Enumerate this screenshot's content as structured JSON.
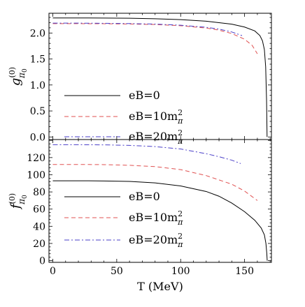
{
  "chart_data": [
    {
      "type": "line",
      "ylabel_sym": "g",
      "ylabel_sup": "(0)",
      "ylabel_sub": "π",
      "ylabel_subsub": "0",
      "xlim": [
        -3,
        171
      ],
      "ylim": [
        -0.05,
        2.38
      ],
      "yticks": [
        0.0,
        0.5,
        1.0,
        1.5,
        2.0
      ],
      "ytick_labels": [
        "0.0",
        "0.5",
        "1.0",
        "1.5",
        "2.0"
      ],
      "legend_position": "bottom-left",
      "series": [
        {
          "name": "eB=0",
          "color": "#000000",
          "dash": "none",
          "x": [
            0,
            20,
            40,
            60,
            80,
            100,
            120,
            140,
            150,
            158,
            162,
            164,
            165.5,
            166.5,
            167.2,
            167.6
          ],
          "y": [
            2.29,
            2.29,
            2.288,
            2.284,
            2.275,
            2.258,
            2.228,
            2.17,
            2.115,
            2.04,
            1.95,
            1.85,
            1.68,
            1.35,
            0.7,
            0.0
          ]
        },
        {
          "name": "eB=10m",
          "name_sup": "2",
          "name_sub": "π",
          "color": "#e05050",
          "dash": "6,4",
          "x": [
            0,
            20,
            40,
            60,
            80,
            100,
            120,
            130,
            140,
            150,
            156,
            160
          ],
          "y": [
            2.18,
            2.18,
            2.178,
            2.173,
            2.163,
            2.14,
            2.095,
            2.055,
            1.99,
            1.88,
            1.76,
            1.6
          ]
        },
        {
          "name": "eB=20m",
          "name_sup": "2",
          "name_sub": "π",
          "color": "#4a3fc8",
          "dash": "7,3,2,3",
          "x": [
            0,
            20,
            40,
            60,
            80,
            100,
            120,
            130,
            140,
            148
          ],
          "y": [
            2.19,
            2.19,
            2.187,
            2.182,
            2.172,
            2.15,
            2.11,
            2.075,
            2.02,
            1.95
          ]
        }
      ]
    },
    {
      "type": "line",
      "ylabel_sym": "f",
      "ylabel_sup": "(0)",
      "ylabel_sub": "π",
      "ylabel_subsub": "0",
      "xlabel": "T (MeV)",
      "xlim": [
        -3,
        171
      ],
      "ylim": [
        -2,
        141
      ],
      "xticks": [
        0,
        50,
        100,
        150
      ],
      "xtick_labels": [
        "0",
        "50",
        "100",
        "150"
      ],
      "yticks": [
        0,
        20,
        40,
        60,
        80,
        100,
        120
      ],
      "ytick_labels": [
        "0",
        "20",
        "40",
        "60",
        "80",
        "100",
        "120"
      ],
      "legend_position": "bottom-left",
      "series": [
        {
          "name": "eB=0",
          "color": "#000000",
          "dash": "none",
          "x": [
            0,
            20,
            40,
            60,
            80,
            100,
            120,
            130,
            140,
            150,
            158,
            163,
            165.5,
            166.7,
            167.4,
            167.7
          ],
          "y": [
            93,
            93,
            92.8,
            92.2,
            90.5,
            87,
            80.5,
            75,
            67,
            57,
            47,
            38,
            30,
            20,
            8,
            0
          ]
        },
        {
          "name": "eB=10m",
          "name_sup": "2",
          "name_sub": "π",
          "color": "#e05050",
          "dash": "6,4",
          "x": [
            0,
            20,
            40,
            60,
            80,
            100,
            120,
            140,
            150,
            160
          ],
          "y": [
            112,
            112,
            111.8,
            111,
            109.5,
            106,
            99,
            89,
            81,
            70
          ]
        },
        {
          "name": "eB=20m",
          "name_sup": "2",
          "name_sub": "π",
          "color": "#4a3fc8",
          "dash": "7,3,2,3",
          "x": [
            0,
            20,
            40,
            60,
            80,
            100,
            120,
            130,
            140,
            147
          ],
          "y": [
            135,
            135,
            134.8,
            134.2,
            132.8,
            130,
            124.5,
            121,
            117,
            113
          ]
        }
      ]
    }
  ]
}
